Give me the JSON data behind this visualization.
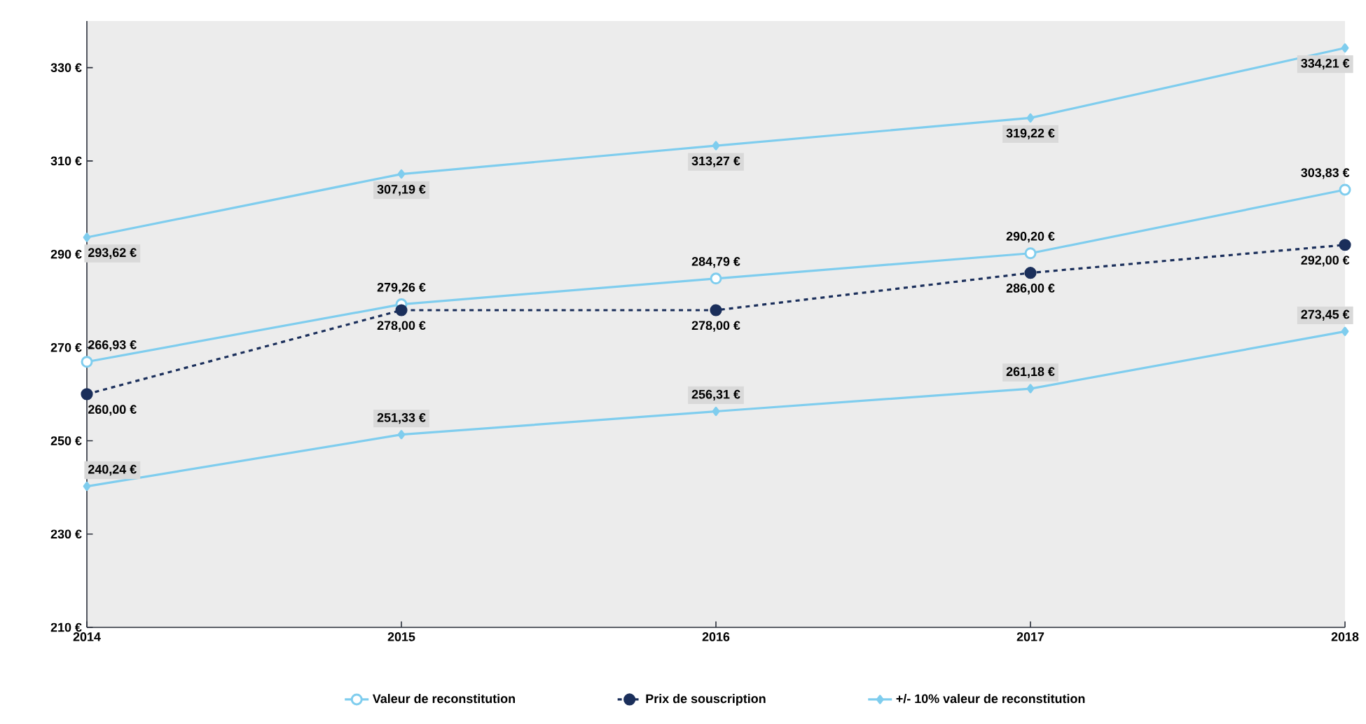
{
  "chart_data": {
    "type": "line",
    "x": [
      2014,
      2015,
      2016,
      2017,
      2018
    ],
    "xlim": [
      2014,
      2018
    ],
    "xticks": [
      2014,
      2015,
      2016,
      2017,
      2018
    ],
    "ylim": [
      210,
      340
    ],
    "yticks": [
      {
        "value": 210,
        "label": "210 €"
      },
      {
        "value": 230,
        "label": "230 €"
      },
      {
        "value": 250,
        "label": "250 €"
      },
      {
        "value": 270,
        "label": "270 €"
      },
      {
        "value": 290,
        "label": "290 €"
      },
      {
        "value": 310,
        "label": "310 €"
      },
      {
        "value": 330,
        "label": "330 €"
      }
    ],
    "series": [
      {
        "name": "Valeur de reconstitution",
        "color": "#7fcdee",
        "marker": "circle",
        "line_style": "solid",
        "values": [
          266.93,
          279.26,
          284.79,
          290.2,
          303.83
        ],
        "value_labels": [
          "266,93 €",
          "279,26 €",
          "284,79 €",
          "290,20 €",
          "303,83 €"
        ]
      },
      {
        "name": "Prix de souscription",
        "color": "#1b2f5b",
        "marker": "circle",
        "line_style": "dashed",
        "values": [
          260.0,
          278.0,
          278.0,
          286.0,
          292.0
        ],
        "value_labels": [
          "260,00 €",
          "278,00 €",
          "278,00 €",
          "286,00 €",
          "292,00 €"
        ]
      },
      {
        "name": "+/- 10% valeur de reconstitution",
        "color": "#7fcdee",
        "marker": "diamond",
        "line_style": "solid",
        "values": [
          293.62,
          307.19,
          313.27,
          319.22,
          334.21
        ],
        "value_labels": [
          "293,62 €",
          "307,19 €",
          "313,27 €",
          "319,22 €",
          "334,21 €"
        ]
      },
      {
        "color": "#7fcdee",
        "marker": "diamond",
        "line_style": "solid",
        "values": [
          240.24,
          251.33,
          256.31,
          261.18,
          273.45
        ],
        "value_labels": [
          "240,24 €",
          "251,33 €",
          "256,31 €",
          "261,18 €",
          "273,45 €"
        ]
      }
    ],
    "grid": false,
    "legend": "bottom"
  }
}
